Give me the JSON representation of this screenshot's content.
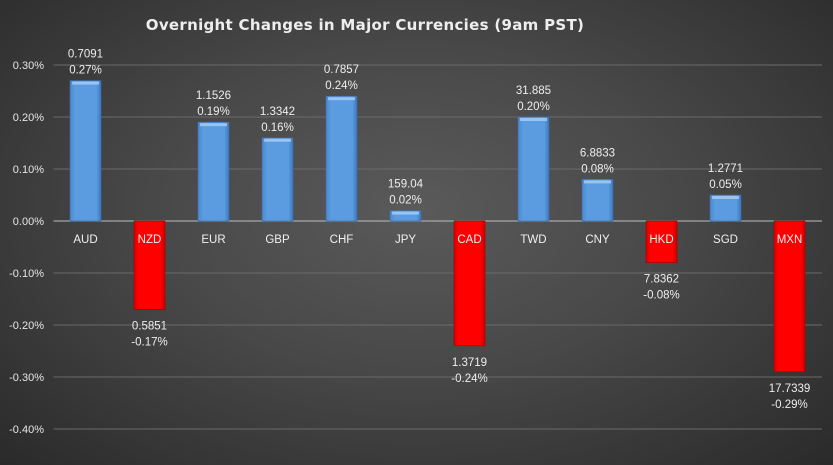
{
  "chart_data": {
    "type": "bar",
    "title": "Overnight Changes in Major Currencies (9am PST)",
    "xlabel": "",
    "ylabel": "",
    "ylim": [
      -0.4,
      0.3
    ],
    "yticks": [
      "0.30%",
      "0.20%",
      "0.10%",
      "0.00%",
      "-0.10%",
      "-0.20%",
      "-0.30%",
      "-0.40%"
    ],
    "grid": true,
    "legend": "none",
    "categories": [
      "AUD",
      "NZD",
      "EUR",
      "GBP",
      "CHF",
      "JPY",
      "CAD",
      "TWD",
      "CNY",
      "HKD",
      "SGD",
      "MXN"
    ],
    "values": [
      0.27,
      -0.17,
      0.19,
      0.16,
      0.24,
      0.02,
      -0.24,
      0.2,
      0.08,
      -0.08,
      0.05,
      -0.29
    ],
    "value_labels": [
      "0.27%",
      "-0.17%",
      "0.19%",
      "0.16%",
      "0.24%",
      "0.02%",
      "-0.24%",
      "0.20%",
      "0.08%",
      "-0.08%",
      "0.05%",
      "-0.29%"
    ],
    "rates": [
      "0.7091",
      "0.5851",
      "1.1526",
      "1.3342",
      "0.7857",
      "159.04",
      "1.3719",
      "31.885",
      "6.8833",
      "7.8362",
      "1.2771",
      "17.7339"
    ],
    "colors": {
      "positive": "#5b9be0",
      "negative": "#ff0000"
    }
  }
}
